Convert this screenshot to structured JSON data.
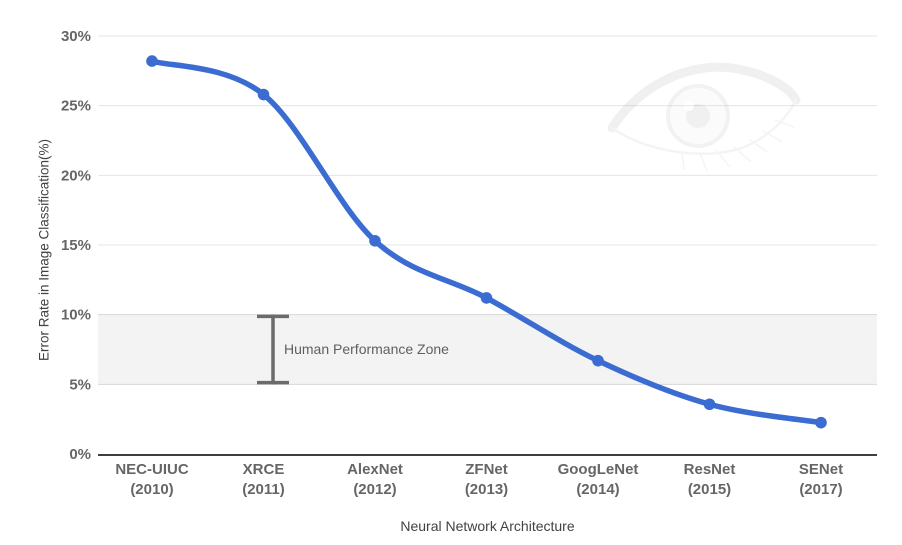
{
  "chart_data": {
    "type": "line",
    "title": "",
    "xlabel": "Neural Network Architecture",
    "ylabel": "Error Rate in Image Classification(%)",
    "categories": [
      "NEC-UIUC",
      "XRCE",
      "AlexNet",
      "ZFNet",
      "GoogLeNet",
      "ResNet",
      "SENet"
    ],
    "category_years": [
      "(2010)",
      "(2011)",
      "(2012)",
      "(2013)",
      "(2014)",
      "(2015)",
      "(2017)"
    ],
    "values": [
      28.2,
      25.8,
      15.3,
      11.2,
      6.7,
      3.57,
      2.25
    ],
    "ylim": [
      0,
      30
    ],
    "y_ticks": [
      0,
      5,
      10,
      15,
      20,
      25,
      30
    ],
    "y_tick_format": "{v}%",
    "grid": true,
    "legend": "none",
    "line_smooth": true,
    "annotation_zone": {
      "label": "Human Performance Zone",
      "from": 5,
      "to": 10,
      "marker": "range-bar"
    },
    "watermark_icon": "eye-watermark",
    "colors": {
      "line": "#3b6cd1",
      "point": "#3b6cd1",
      "grid": "#e4e4e4",
      "band_fill": "#f3f3f3",
      "band_edge": "#d7d7d7",
      "axis_line": "#3f3f3f",
      "tick_label": "#666666",
      "axis_title": "#424242",
      "zone_text": "#5f5f5f",
      "zone_marker": "#6b6b6b"
    }
  }
}
